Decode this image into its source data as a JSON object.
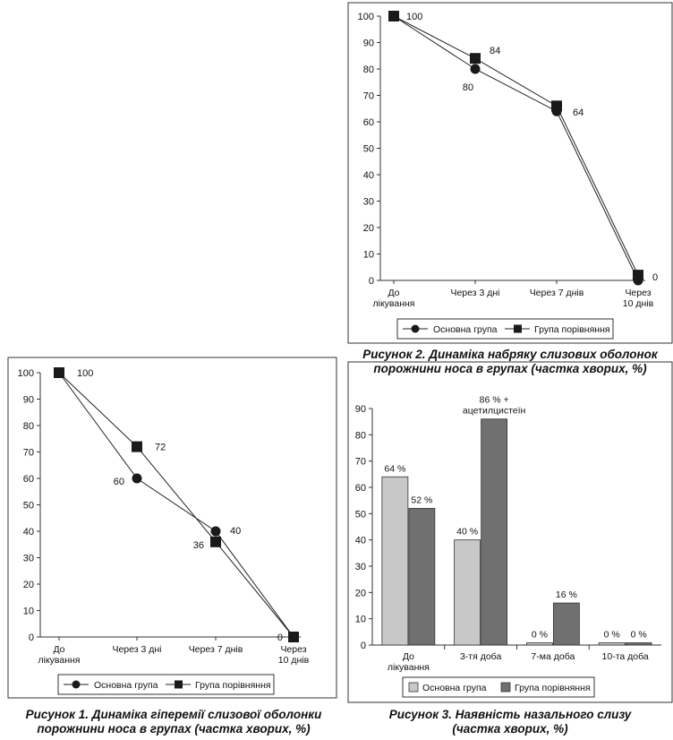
{
  "figures": [
    {
      "caption_line1": "Рисунок 1. Динаміка гіперемії слизової оболонки",
      "caption_line2": "порожнини носа в групах (частка хворих, %)"
    },
    {
      "caption_line1": "Рисунок 2. Динаміка набряку слизових оболонок",
      "caption_line2": "порожнини носа в групах (частка хворих, %)"
    },
    {
      "caption_line1": "Рисунок 3. Наявність назального слизу",
      "caption_line2": "(частка хворих, %)"
    }
  ],
  "chart_data": [
    {
      "type": "line",
      "categories": [
        [
          "До",
          "лікування"
        ],
        [
          "Через 3 дні"
        ],
        [
          "Через 7 днів"
        ],
        [
          "Через",
          "10 днів"
        ]
      ],
      "ylim": [
        0,
        100
      ],
      "yticks": [
        0,
        10,
        20,
        30,
        40,
        50,
        60,
        70,
        80,
        90,
        100
      ],
      "series": [
        {
          "name": "Основна група",
          "marker": "circle",
          "values": [
            100,
            60,
            40,
            0
          ],
          "labels": [
            "100",
            "60",
            "40",
            "0"
          ]
        },
        {
          "name": "Група порівняння",
          "marker": "square",
          "values": [
            100,
            72,
            36,
            0
          ],
          "labels": [
            "",
            "72",
            "36",
            ""
          ]
        }
      ],
      "colors": {
        "line": "#222222",
        "marker": "#1a1a1a"
      },
      "legend": "bottom",
      "grid": false
    },
    {
      "type": "line",
      "categories": [
        [
          "До",
          "лікування"
        ],
        [
          "Через 3 дні"
        ],
        [
          "Через 7 днів"
        ],
        [
          "Через",
          "10 днів"
        ]
      ],
      "ylim": [
        0,
        100
      ],
      "yticks": [
        0,
        10,
        20,
        30,
        40,
        50,
        60,
        70,
        80,
        90,
        100
      ],
      "series": [
        {
          "name": "Основна група",
          "marker": "circle",
          "values": [
            100,
            80,
            64,
            0
          ],
          "labels": [
            "100",
            "80",
            "64",
            "0"
          ]
        },
        {
          "name": "Група порівняння",
          "marker": "square",
          "values": [
            100,
            84,
            66,
            2
          ],
          "labels": [
            "",
            "84",
            "",
            ""
          ]
        }
      ],
      "colors": {
        "line": "#222222",
        "marker": "#1a1a1a"
      },
      "legend": "bottom",
      "grid": false
    },
    {
      "type": "bar",
      "categories": [
        [
          "До",
          "лікування"
        ],
        [
          "3-тя доба"
        ],
        [
          "7-ма доба"
        ],
        [
          "10-та доба"
        ]
      ],
      "ylim": [
        0,
        90
      ],
      "yticks": [
        0,
        10,
        20,
        30,
        40,
        50,
        60,
        70,
        80,
        90
      ],
      "series": [
        {
          "name": "Основна група",
          "color": "#c8c8c8",
          "values": [
            64,
            40,
            0,
            0
          ],
          "labels": [
            [
              "64 %"
            ],
            [
              "40 %"
            ],
            [
              "0 %"
            ],
            [
              "0 %"
            ]
          ]
        },
        {
          "name": "Група порівняння",
          "color": "#707070",
          "values": [
            52,
            86,
            16,
            0
          ],
          "labels": [
            [
              "52 %"
            ],
            [
              "86 % +",
              "ацетилцистеїн"
            ],
            [
              "16 %"
            ],
            [
              "0 %"
            ]
          ]
        }
      ],
      "legend": "bottom",
      "grid": false
    }
  ]
}
